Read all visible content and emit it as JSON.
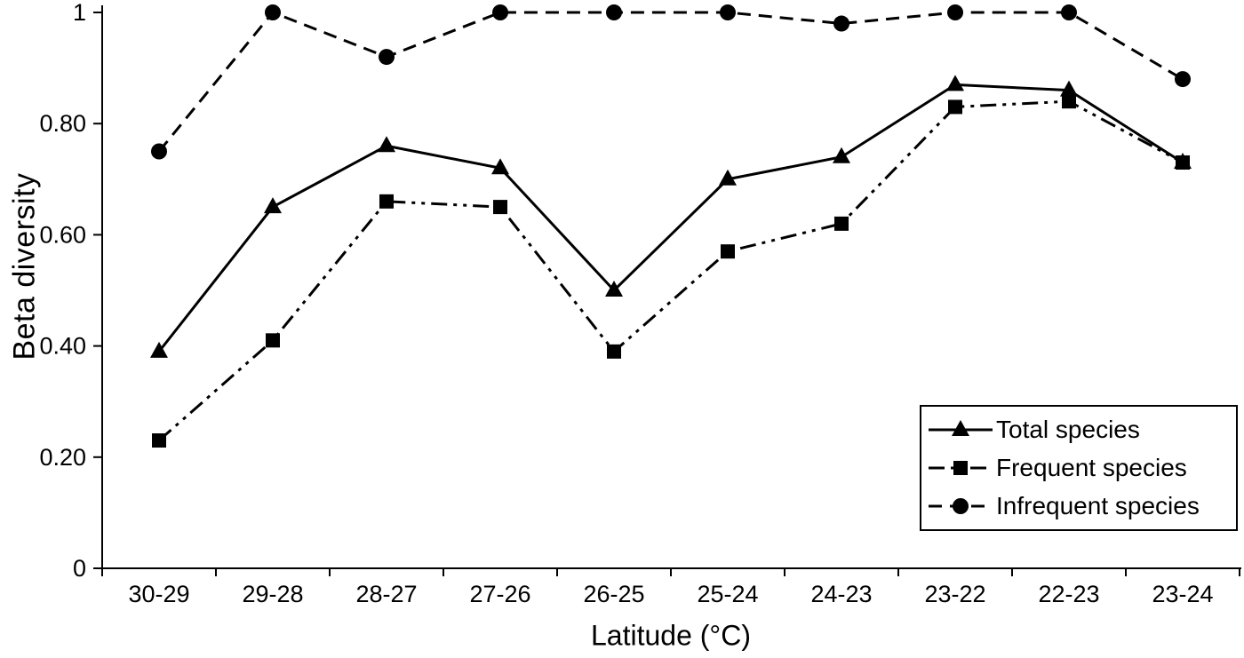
{
  "chart_data": {
    "type": "line",
    "title": "",
    "xlabel": "Latitude (°C)",
    "ylabel": "Beta diversity",
    "categories": [
      "30-29",
      "29-28",
      "28-27",
      "27-26",
      "26-25",
      "25-24",
      "24-23",
      "23-22",
      "22-23",
      "23-24"
    ],
    "ylim": [
      0,
      1
    ],
    "yticks": [
      {
        "value": 0,
        "label": "0"
      },
      {
        "value": 0.2,
        "label": "0.20"
      },
      {
        "value": 0.4,
        "label": "0.40"
      },
      {
        "value": 0.6,
        "label": "0.60"
      },
      {
        "value": 0.8,
        "label": "0.80"
      },
      {
        "value": 1,
        "label": "1"
      }
    ],
    "grid": false,
    "legend_position": "lower-right",
    "line_color": "#000000",
    "series": [
      {
        "name": "Total species",
        "marker": "triangle",
        "line": "solid",
        "values": [
          0.39,
          0.65,
          0.76,
          0.72,
          0.5,
          0.7,
          0.74,
          0.87,
          0.86,
          0.73
        ]
      },
      {
        "name": "Frequent species",
        "marker": "square",
        "line": "dash-dot-dot",
        "values": [
          0.23,
          0.41,
          0.66,
          0.65,
          0.39,
          0.57,
          0.62,
          0.83,
          0.84,
          0.73
        ]
      },
      {
        "name": "Infrequent species",
        "marker": "circle",
        "line": "dashed",
        "values": [
          0.75,
          1.0,
          0.92,
          1.0,
          1.0,
          1.0,
          0.98,
          1.0,
          1.0,
          0.88
        ]
      }
    ]
  }
}
